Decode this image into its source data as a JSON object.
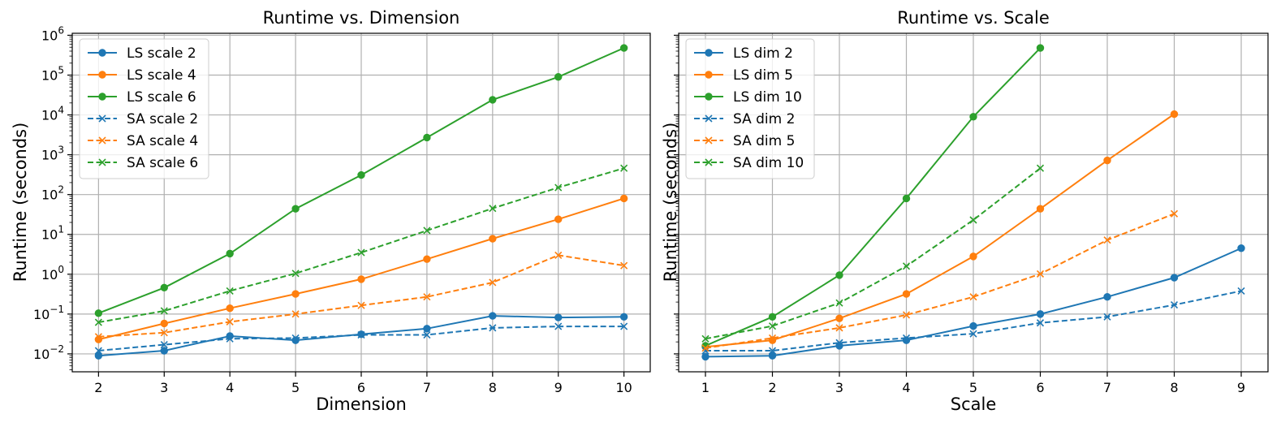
{
  "figure": {
    "background": "#ffffff"
  },
  "colors": {
    "blue": "#1f77b4",
    "orange": "#ff7f0e",
    "green": "#2ca02c"
  },
  "chart_data": [
    {
      "type": "line",
      "title": "Runtime vs. Dimension",
      "xlabel": "Dimension",
      "ylabel": "Runtime (seconds)",
      "yscale": "log",
      "xlim": [
        1.6,
        10.4
      ],
      "ylim_exp": [
        -2.45,
        6.05
      ],
      "xticks": [
        2,
        3,
        4,
        5,
        6,
        7,
        8,
        9,
        10
      ],
      "yticks_exp": [
        -2,
        -1,
        0,
        1,
        2,
        3,
        4,
        5,
        6
      ],
      "grid": true,
      "legend_position": "top-left",
      "series": [
        {
          "name": "LS scale 2",
          "color": "blue",
          "style": "solid",
          "marker": "circle",
          "x": [
            2,
            3,
            4,
            5,
            6,
            7,
            8,
            9,
            10
          ],
          "y": [
            0.009,
            0.012,
            0.028,
            0.022,
            0.031,
            0.043,
            0.09,
            0.082,
            0.085
          ]
        },
        {
          "name": "LS scale 4",
          "color": "orange",
          "style": "solid",
          "marker": "circle",
          "x": [
            2,
            3,
            4,
            5,
            6,
            7,
            8,
            9,
            10
          ],
          "y": [
            0.023,
            0.058,
            0.14,
            0.32,
            0.75,
            2.4,
            7.8,
            24,
            80
          ]
        },
        {
          "name": "LS scale 6",
          "color": "green",
          "style": "solid",
          "marker": "circle",
          "x": [
            2,
            3,
            4,
            5,
            6,
            7,
            8,
            9,
            10
          ],
          "y": [
            0.105,
            0.46,
            3.3,
            44,
            310,
            2700,
            24000,
            90000,
            480000
          ]
        },
        {
          "name": "SA scale 2",
          "color": "blue",
          "style": "dashed",
          "marker": "x",
          "x": [
            2,
            3,
            4,
            5,
            6,
            7,
            8,
            9,
            10
          ],
          "y": [
            0.012,
            0.017,
            0.024,
            0.025,
            0.03,
            0.03,
            0.045,
            0.049,
            0.049
          ]
        },
        {
          "name": "SA scale 4",
          "color": "orange",
          "style": "dashed",
          "marker": "x",
          "x": [
            2,
            3,
            4,
            5,
            6,
            7,
            8,
            9,
            10
          ],
          "y": [
            0.027,
            0.034,
            0.064,
            0.1,
            0.165,
            0.27,
            0.62,
            3.0,
            1.65
          ]
        },
        {
          "name": "SA scale 6",
          "color": "green",
          "style": "dashed",
          "marker": "x",
          "x": [
            2,
            3,
            4,
            5,
            6,
            7,
            8,
            9,
            10
          ],
          "y": [
            0.062,
            0.12,
            0.38,
            1.05,
            3.5,
            12.5,
            45,
            150,
            460
          ]
        }
      ]
    },
    {
      "type": "line",
      "title": "Runtime vs. Scale",
      "xlabel": "Scale",
      "ylabel": "Runtime (seconds)",
      "yscale": "log",
      "xlim": [
        0.6,
        9.4
      ],
      "ylim_exp": [
        -2.45,
        6.05
      ],
      "xticks": [
        1,
        2,
        3,
        4,
        5,
        6,
        7,
        8,
        9
      ],
      "yticks_exp": [
        -2,
        -1,
        0,
        1,
        2,
        3,
        4,
        5,
        6
      ],
      "show_y_tick_labels": false,
      "grid": true,
      "legend_position": "top-left",
      "series": [
        {
          "name": "LS dim 2",
          "color": "blue",
          "style": "solid",
          "marker": "circle",
          "x": [
            1,
            2,
            3,
            4,
            5,
            6,
            7,
            8,
            9
          ],
          "y": [
            0.0085,
            0.009,
            0.016,
            0.022,
            0.05,
            0.1,
            0.27,
            0.82,
            4.5
          ]
        },
        {
          "name": "LS dim 5",
          "color": "orange",
          "style": "solid",
          "marker": "circle",
          "x": [
            1,
            2,
            3,
            4,
            5,
            6,
            7,
            8
          ],
          "y": [
            0.015,
            0.022,
            0.078,
            0.32,
            2.8,
            44,
            720,
            10500
          ]
        },
        {
          "name": "LS dim 10",
          "color": "green",
          "style": "solid",
          "marker": "circle",
          "x": [
            1,
            2,
            3,
            4,
            5,
            6
          ],
          "y": [
            0.016,
            0.085,
            0.95,
            80,
            9000,
            480000
          ]
        },
        {
          "name": "SA dim 2",
          "color": "blue",
          "style": "dashed",
          "marker": "x",
          "x": [
            1,
            2,
            3,
            4,
            5,
            6,
            7,
            8,
            9
          ],
          "y": [
            0.012,
            0.012,
            0.019,
            0.025,
            0.032,
            0.06,
            0.085,
            0.17,
            0.38
          ]
        },
        {
          "name": "SA dim 5",
          "color": "orange",
          "style": "dashed",
          "marker": "x",
          "x": [
            1,
            2,
            3,
            4,
            5,
            6,
            7,
            8
          ],
          "y": [
            0.014,
            0.025,
            0.045,
            0.095,
            0.27,
            1.02,
            7.2,
            33
          ]
        },
        {
          "name": "SA dim 10",
          "color": "green",
          "style": "dashed",
          "marker": "x",
          "x": [
            1,
            2,
            3,
            4,
            5,
            6
          ],
          "y": [
            0.024,
            0.05,
            0.19,
            1.6,
            23,
            460
          ]
        }
      ]
    }
  ]
}
